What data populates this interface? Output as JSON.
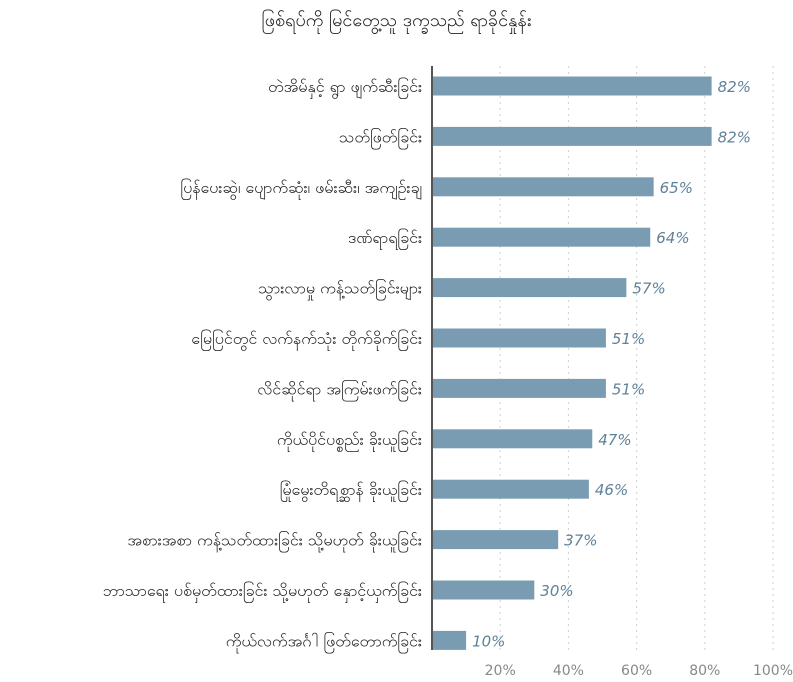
{
  "chart_data": {
    "type": "bar",
    "orientation": "horizontal",
    "title": "ဖြစ်ရပ်ကို မြင်တွေ့သူ ဒုက္ခသည် ရာခိုင်နှုန်း",
    "categories": [
      "တဲအိမ်နှင့် ရွာ ဖျက်ဆီးခြင်း",
      "သတ်ဖြတ်ခြင်း",
      "ပြန်ပေးဆွဲ၊ ပျောက်ဆုံး၊ ဖမ်းဆီး၊ အကျဉ်းချ",
      "ဒဏ်ရာရခြင်း",
      "သွားလာမှု ကန့်သတ်ခြင်းများ",
      "မြေပြင်တွင် လက်နက်သုံး တိုက်ခိုက်ခြင်း",
      "လိင်ဆိုင်ရာ အကြမ်းဖက်ခြင်း",
      "ကိုယ်ပိုင်ပစ္စည်း ခိုးယူခြင်း",
      "မြုံမွေးတိရစ္ဆာန် ခိုးယူခြင်း",
      "အစားအစာ ကန့်သတ်ထားခြင်း သို့မဟုတ် ခိုးယူခြင်း",
      "ဘာသာရေး ပစ်မှတ်ထားခြင်း သို့မဟုတ် နှောင့်ယှက်ခြင်း",
      "ကိုယ်လက်အင်္ဂါ ဖြတ်တောက်ခြင်း"
    ],
    "values": [
      82,
      82,
      65,
      64,
      57,
      51,
      51,
      47,
      46,
      37,
      30,
      10
    ],
    "value_labels": [
      "82%",
      "82%",
      "65%",
      "64%",
      "57%",
      "51%",
      "51%",
      "47%",
      "46%",
      "37%",
      "30%",
      "10%"
    ],
    "xlim": [
      0,
      100
    ],
    "xticks": [
      20,
      40,
      60,
      80,
      100
    ],
    "xtick_labels": [
      "20%",
      "40%",
      "60%",
      "80%",
      "100%"
    ],
    "grid": true,
    "bar_color": "#7a9cb3",
    "value_label_color": "#5f8299"
  }
}
